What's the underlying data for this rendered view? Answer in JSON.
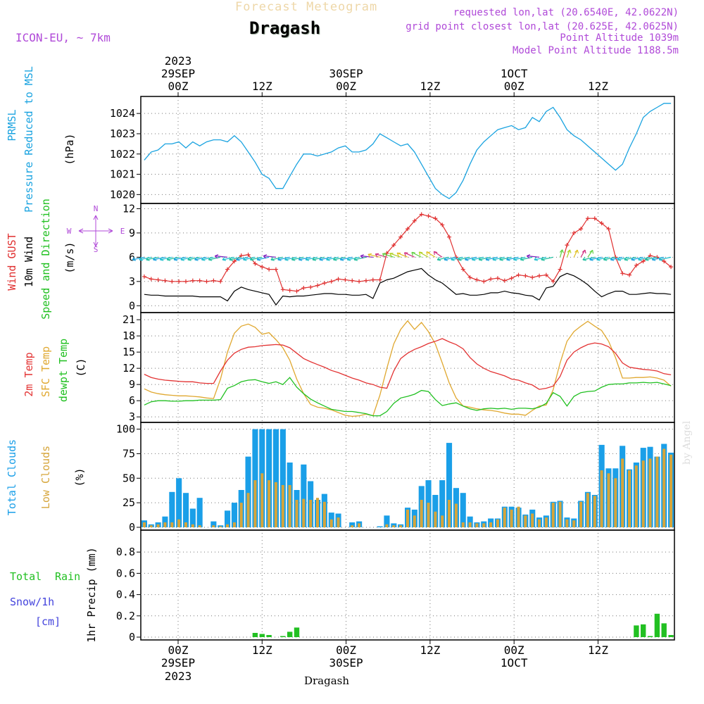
{
  "header": {
    "forecast_title": "Forecast Meteogram",
    "location": "Dragash",
    "model": "ICON-EU, ~ 7km",
    "requested": "requested lon,lat (20.6540E, 42.0622N)",
    "grid_point": "grid point closest lon,lat (20.625E, 42.0625N)",
    "point_altitude": "Point Altitude 1039m",
    "model_altitude": "Model Point Altitude 1188.5m",
    "watermark": "by Angel",
    "footer_location": "Dragash"
  },
  "colors": {
    "pressure": "#1aa3e0",
    "gust": "#e03030",
    "wind": "#000000",
    "temp2m": "#e33333",
    "sfc_temp": "#e0a830",
    "dewpt": "#20c020",
    "total_clouds": "#1a9fe8",
    "low_clouds": "#d6a53a",
    "rain": "#22c022",
    "snow": "#4444dd",
    "purple": "#b04ad8"
  },
  "chart_data": [
    {
      "type": "line",
      "panel": "pressure",
      "labels": [
        "PRMSL",
        "Pressure Reduced to MSL",
        "(hPa)"
      ],
      "x": [
        0,
        1,
        2,
        3,
        4,
        5,
        6,
        7,
        8,
        9,
        10,
        11,
        12,
        13,
        14,
        15,
        16,
        17,
        18,
        19,
        20,
        21,
        22,
        23,
        24,
        25,
        26,
        27,
        28,
        29,
        30,
        31,
        32,
        33,
        34,
        35,
        36,
        37,
        38,
        39,
        40,
        41,
        42,
        43,
        44,
        45,
        46,
        47,
        48,
        49,
        50,
        51,
        52,
        53,
        54,
        55,
        56,
        57,
        58,
        59,
        60,
        61,
        62,
        63,
        64,
        65,
        66,
        67,
        68,
        69,
        70,
        71,
        72,
        73,
        74,
        75,
        76
      ],
      "values": [
        1021.7,
        1022.1,
        1022.2,
        1022.5,
        1022.5,
        1022.6,
        1022.3,
        1022.6,
        1022.4,
        1022.6,
        1022.7,
        1022.7,
        1022.6,
        1022.9,
        1022.6,
        1022.1,
        1021.6,
        1021.0,
        1020.8,
        1020.3,
        1020.3,
        1020.9,
        1021.5,
        1022.0,
        1022.0,
        1021.9,
        1022.0,
        1022.1,
        1022.3,
        1022.4,
        1022.1,
        1022.1,
        1022.2,
        1022.5,
        1023.0,
        1022.8,
        1022.6,
        1022.4,
        1022.5,
        1022.1,
        1021.5,
        1020.9,
        1020.3,
        1020.0,
        1019.8,
        1020.1,
        1020.7,
        1021.5,
        1022.2,
        1022.6,
        1022.9,
        1023.2,
        1023.3,
        1023.4,
        1023.2,
        1023.3,
        1023.8,
        1023.6,
        1024.1,
        1024.3,
        1023.8,
        1023.2,
        1022.9,
        1022.7,
        1022.4,
        1022.1,
        1021.8,
        1021.5,
        1021.2,
        1021.5,
        1022.3,
        1023.0,
        1023.8,
        1024.1,
        1024.3,
        1024.5,
        1024.5
      ],
      "ylim": [
        1019.7,
        1024.7
      ],
      "yticks": [
        1020,
        1021,
        1022,
        1023,
        1024
      ]
    },
    {
      "type": "line",
      "panel": "wind",
      "labels": [
        "Wind GUST",
        "10m Wind",
        "Speed and Direction",
        "(m/s)"
      ],
      "compass": {
        "n": "N",
        "s": "S",
        "w": "W",
        "e": "E"
      },
      "gust": [
        3.6,
        3.3,
        3.2,
        3.1,
        3.0,
        3.0,
        3.0,
        3.1,
        3.1,
        3.0,
        3.1,
        3.0,
        4.5,
        5.5,
        6.2,
        6.3,
        5.2,
        4.8,
        4.5,
        4.5,
        2.0,
        1.9,
        1.8,
        2.2,
        2.3,
        2.5,
        2.8,
        3.0,
        3.3,
        3.2,
        3.1,
        3.0,
        3.1,
        3.2,
        3.2,
        6.5,
        7.5,
        8.5,
        9.5,
        10.5,
        11.3,
        11.1,
        10.8,
        10.0,
        8.5,
        6.0,
        4.5,
        3.5,
        3.2,
        3.0,
        3.3,
        3.4,
        3.1,
        3.4,
        3.8,
        3.7,
        3.5,
        3.7,
        3.8,
        3.0,
        4.5,
        7.5,
        9.0,
        9.5,
        10.8,
        10.8,
        10.2,
        9.5,
        6.0,
        4.0,
        3.8,
        5.0,
        5.5,
        6.2,
        6.0,
        5.5,
        4.8
      ],
      "speed": [
        1.4,
        1.3,
        1.3,
        1.2,
        1.2,
        1.2,
        1.2,
        1.2,
        1.1,
        1.1,
        1.1,
        1.1,
        0.6,
        1.8,
        2.3,
        2.0,
        1.8,
        1.6,
        1.4,
        0.1,
        1.2,
        1.1,
        1.2,
        1.2,
        1.3,
        1.4,
        1.5,
        1.5,
        1.4,
        1.4,
        1.3,
        1.3,
        1.4,
        0.9,
        2.8,
        3.2,
        3.4,
        3.8,
        4.2,
        4.4,
        4.6,
        3.8,
        3.2,
        2.8,
        2.1,
        1.4,
        1.5,
        1.3,
        1.3,
        1.4,
        1.6,
        1.6,
        1.8,
        1.6,
        1.5,
        1.3,
        1.2,
        0.7,
        2.2,
        2.4,
        3.6,
        4.0,
        3.7,
        3.2,
        2.6,
        1.8,
        1.1,
        1.5,
        1.8,
        1.8,
        1.4,
        1.4,
        1.5,
        1.6,
        1.5,
        1.5,
        1.4
      ],
      "ylim": [
        -0.5,
        12.3
      ],
      "yticks": [
        0,
        3,
        6,
        9,
        12
      ]
    },
    {
      "type": "line",
      "panel": "temperature",
      "labels": [
        "2m Temp",
        "SFC Temp",
        "dewpt Temp",
        "(C)"
      ],
      "temp2m": [
        10.9,
        10.3,
        10.0,
        9.8,
        9.7,
        9.6,
        9.5,
        9.5,
        9.3,
        9.2,
        9.2,
        11.5,
        13.5,
        14.8,
        15.5,
        15.9,
        16.0,
        16.2,
        16.3,
        16.4,
        16.3,
        15.8,
        14.8,
        13.8,
        13.2,
        12.7,
        12.2,
        11.6,
        11.2,
        10.7,
        10.2,
        9.8,
        9.3,
        9.0,
        8.5,
        8.3,
        11.5,
        13.8,
        14.8,
        15.5,
        16.0,
        16.6,
        17.0,
        17.5,
        16.9,
        16.4,
        15.6,
        14.0,
        12.8,
        12.0,
        11.4,
        11.0,
        10.6,
        10.0,
        9.8,
        9.3,
        8.9,
        8.1,
        8.3,
        8.7,
        10.5,
        13.5,
        15.0,
        15.8,
        16.4,
        16.7,
        16.5,
        16.0,
        14.8,
        13.0,
        12.2,
        12.0,
        11.8,
        11.7,
        11.5,
        11.0,
        10.8
      ],
      "sfc": [
        8.2,
        7.6,
        7.3,
        7.1,
        7.0,
        6.9,
        6.9,
        6.8,
        6.7,
        6.5,
        6.4,
        10.0,
        15.0,
        18.5,
        19.8,
        20.2,
        19.6,
        18.3,
        18.6,
        17.3,
        15.8,
        13.5,
        10.0,
        7.3,
        5.3,
        4.8,
        4.6,
        4.3,
        3.8,
        3.3,
        3.1,
        3.2,
        3.5,
        3.2,
        7.0,
        12.0,
        16.5,
        19.2,
        20.8,
        19.2,
        20.5,
        18.8,
        16.5,
        13.0,
        9.3,
        6.5,
        5.0,
        4.8,
        4.5,
        4.3,
        4.2,
        4.0,
        3.7,
        3.5,
        3.5,
        3.3,
        4.2,
        5.0,
        5.2,
        8.0,
        13.0,
        17.0,
        18.8,
        19.8,
        20.7,
        19.8,
        19.0,
        17.0,
        14.0,
        10.2,
        10.2,
        10.3,
        10.3,
        10.4,
        10.2,
        9.8,
        8.7
      ],
      "dewpt": [
        5.2,
        5.8,
        6.0,
        6.0,
        5.9,
        5.9,
        6.0,
        6.0,
        6.1,
        6.1,
        6.1,
        6.2,
        8.3,
        8.8,
        9.5,
        9.8,
        9.9,
        9.5,
        9.2,
        9.5,
        9.0,
        10.3,
        8.5,
        7.3,
        6.3,
        5.6,
        5.0,
        4.4,
        4.2,
        4.0,
        4.0,
        3.8,
        3.6,
        3.2,
        3.2,
        4.0,
        5.5,
        6.5,
        6.8,
        7.2,
        7.9,
        7.7,
        6.2,
        5.1,
        5.4,
        5.6,
        5.0,
        4.5,
        4.2,
        4.5,
        4.6,
        4.5,
        4.6,
        4.4,
        4.6,
        4.6,
        4.5,
        4.8,
        5.5,
        7.5,
        6.8,
        5.0,
        6.8,
        7.5,
        7.7,
        7.8,
        8.5,
        9.0,
        9.1,
        9.1,
        9.3,
        9.3,
        9.4,
        9.3,
        9.4,
        9.1,
        8.8
      ],
      "ylim": [
        2.5,
        21.8
      ],
      "yticks": [
        3,
        6,
        9,
        12,
        15,
        18,
        21
      ]
    },
    {
      "type": "bar",
      "panel": "clouds",
      "labels": [
        "Total Clouds",
        "Low Clouds",
        "(%)"
      ],
      "total": [
        7,
        3,
        5,
        11,
        36,
        50,
        35,
        19,
        30,
        0,
        6,
        2,
        17,
        25,
        38,
        72,
        100,
        100,
        100,
        100,
        100,
        66,
        38,
        64,
        47,
        28,
        34,
        15,
        14,
        0,
        5,
        6,
        0,
        0,
        1,
        12,
        4,
        3,
        20,
        18,
        42,
        48,
        33,
        48,
        86,
        40,
        35,
        11,
        5,
        6,
        9,
        9,
        21,
        21,
        20,
        13,
        18,
        10,
        12,
        26,
        27,
        10,
        9,
        27,
        36,
        33,
        84,
        60,
        60,
        83,
        59,
        66,
        81,
        82,
        72,
        85,
        76
      ],
      "low": [
        5,
        2,
        3,
        5,
        5,
        8,
        5,
        3,
        2,
        0,
        2,
        1,
        3,
        5,
        25,
        35,
        48,
        55,
        48,
        46,
        43,
        43,
        28,
        29,
        28,
        30,
        26,
        8,
        10,
        0,
        2,
        4,
        0,
        0,
        0,
        3,
        2,
        2,
        18,
        12,
        28,
        25,
        16,
        12,
        28,
        24,
        5,
        5,
        4,
        4,
        5,
        8,
        20,
        18,
        21,
        12,
        14,
        8,
        10,
        25,
        26,
        8,
        7,
        26,
        35,
        32,
        58,
        55,
        50,
        70,
        58,
        63,
        68,
        70,
        72,
        80,
        74
      ],
      "ylim": [
        0,
        104
      ],
      "yticks": [
        0,
        25,
        50,
        75,
        100
      ]
    },
    {
      "type": "bar",
      "panel": "precip",
      "labels": [
        "Total",
        "Rain",
        "Snow/1h",
        "[cm]",
        "1hr Precip (mm)"
      ],
      "rain": [
        0,
        0,
        0,
        0,
        0,
        0,
        0,
        0,
        0,
        0,
        0,
        0,
        0,
        0,
        0,
        0,
        0.04,
        0.03,
        0.02,
        0,
        0.01,
        0.05,
        0.09,
        0,
        0,
        0,
        0,
        0,
        0,
        0,
        0,
        0,
        0,
        0,
        0,
        0,
        0,
        0,
        0,
        0,
        0,
        0,
        0,
        0,
        0,
        0,
        0,
        0,
        0,
        0,
        0,
        0,
        0,
        0,
        0,
        0,
        0,
        0,
        0,
        0,
        0,
        0,
        0,
        0,
        0,
        0,
        0,
        0,
        0,
        0,
        0,
        0.11,
        0.12,
        0.01,
        0.22,
        0.13,
        0.02
      ],
      "ylim": [
        0,
        0.98
      ],
      "yticks": [
        0,
        0.2,
        0.4,
        0.6,
        0.8
      ],
      "ytick_labels": [
        "0",
        "0.2",
        "0.4",
        "0.6",
        "0.8"
      ]
    }
  ],
  "time_axis": {
    "top": [
      {
        "hour": "00Z",
        "day": "29SEP",
        "year": "2023"
      },
      {
        "hour": "12Z"
      },
      {
        "hour": "00Z",
        "day": "30SEP"
      },
      {
        "hour": "12Z"
      },
      {
        "hour": "00Z",
        "day": "1OCT"
      },
      {
        "hour": "12Z"
      }
    ],
    "bottom": [
      {
        "hour": "00Z",
        "day": "29SEP",
        "year": "2023"
      },
      {
        "hour": "12Z"
      },
      {
        "hour": "00Z",
        "day": "30SEP"
      },
      {
        "hour": "12Z"
      },
      {
        "hour": "00Z",
        "day": "1OCT"
      },
      {
        "hour": "12Z"
      }
    ]
  }
}
